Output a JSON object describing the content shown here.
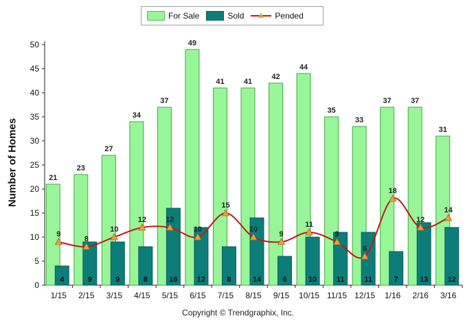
{
  "chart_data": {
    "type": "bar",
    "categories": [
      "1/15",
      "2/15",
      "3/15",
      "4/15",
      "5/15",
      "6/15",
      "7/15",
      "8/15",
      "9/15",
      "10/15",
      "11/15",
      "12/15",
      "1/16",
      "2/16",
      "3/16"
    ],
    "series": [
      {
        "name": "For Sale",
        "type": "bar",
        "values": [
          21,
          23,
          27,
          34,
          37,
          49,
          41,
          41,
          42,
          44,
          35,
          33,
          37,
          37,
          31
        ],
        "color": "#98f598"
      },
      {
        "name": "Sold",
        "type": "bar",
        "values": [
          4,
          9,
          9,
          8,
          16,
          12,
          8,
          14,
          6,
          10,
          11,
          11,
          7,
          13,
          12
        ],
        "color": "#0d7d79"
      },
      {
        "name": "Pended",
        "type": "line",
        "values": [
          9,
          8,
          10,
          12,
          12,
          10,
          15,
          10,
          9,
          11,
          9,
          6,
          18,
          12,
          14
        ],
        "color": "#c01818",
        "marker_color": "#e8a040"
      }
    ],
    "ylabel": "Number of Homes",
    "ylim": [
      0,
      50
    ],
    "yticks": [
      0,
      5,
      10,
      15,
      20,
      25,
      30,
      35,
      40,
      45,
      50
    ],
    "legend": "top"
  },
  "footer": {
    "copyright": "Copyright © Trendgraphix, Inc."
  }
}
